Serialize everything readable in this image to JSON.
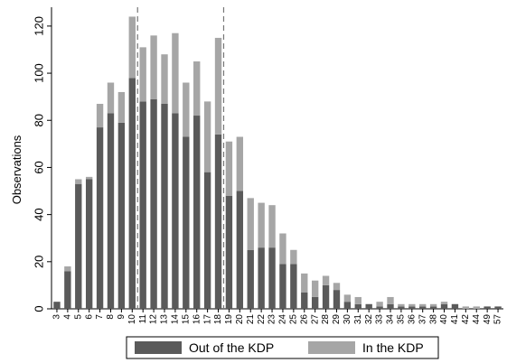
{
  "chart_data": {
    "type": "bar",
    "stacked": true,
    "title": "",
    "xlabel": "",
    "ylabel": "Observations",
    "ylim": [
      0,
      128
    ],
    "yticks": [
      0,
      20,
      40,
      60,
      80,
      100,
      120
    ],
    "grid": false,
    "legend_position": "bottom",
    "categories": [
      "3",
      "4",
      "5",
      "6",
      "7",
      "8",
      "9",
      "10",
      "11",
      "12",
      "13",
      "14",
      "15",
      "16",
      "17",
      "18",
      "19",
      "20",
      "21",
      "22",
      "23",
      "24",
      "25",
      "26",
      "27",
      "28",
      "29",
      "30",
      "31",
      "32",
      "33",
      "34",
      "35",
      "36",
      "37",
      "38",
      "40",
      "41",
      "42",
      "44",
      "49",
      "57"
    ],
    "series": [
      {
        "name": "Out of the KDP",
        "color": "#5a5a5a",
        "values": [
          3,
          16,
          53,
          55,
          77,
          83,
          79,
          98,
          88,
          89,
          87,
          83,
          73,
          82,
          58,
          74,
          48,
          50,
          25,
          26,
          26,
          19,
          19,
          7,
          5,
          10,
          8,
          3,
          2,
          2,
          1,
          2,
          1,
          1,
          1,
          1,
          2,
          2,
          0,
          0,
          1,
          1
        ]
      },
      {
        "name": "In the KDP",
        "color": "#a6a6a6",
        "values": [
          0,
          2,
          2,
          1,
          10,
          13,
          13,
          26,
          23,
          27,
          21,
          34,
          23,
          23,
          30,
          41,
          23,
          23,
          22,
          19,
          18,
          13,
          6,
          8,
          7,
          4,
          3,
          3,
          3,
          0,
          2,
          3,
          1,
          1,
          1,
          1,
          1,
          0,
          1,
          1,
          0,
          0
        ]
      }
    ],
    "reference_lines": [
      {
        "between": [
          "10",
          "11"
        ],
        "style": "dashed"
      },
      {
        "between": [
          "18",
          "19"
        ],
        "style": "dashed"
      }
    ]
  }
}
